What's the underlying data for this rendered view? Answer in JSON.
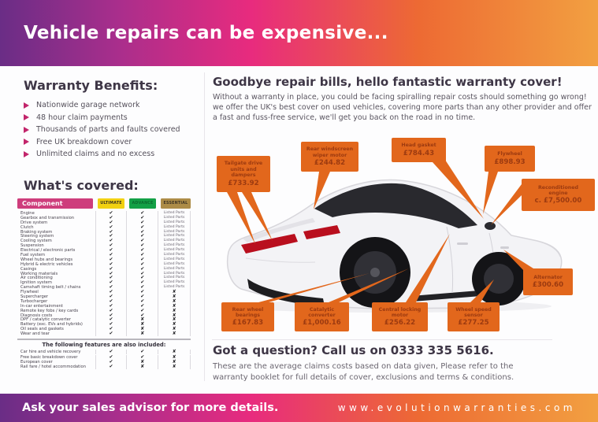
{
  "banner": {
    "title": "Vehicle repairs can be expensive...",
    "footer_left": "Ask your sales advisor for more details.",
    "website": "www.evolutionwarranties.com"
  },
  "benefits": {
    "heading": "Warranty Benefits:",
    "items": [
      "Nationwide garage network",
      "48 hour claim payments",
      "Thousands of parts and faults covered",
      "Free UK breakdown cover",
      "Unlimited claims and no excess"
    ]
  },
  "covered": {
    "heading": "What's covered:",
    "columns": [
      "Component",
      "ULTIMATE",
      "ADVANCE",
      "ESSENTIAL"
    ],
    "rows": [
      [
        "Engine",
        "✔",
        "✔",
        "Listed Parts"
      ],
      [
        "Gearbox and transmission",
        "✔",
        "✔",
        "Listed Parts"
      ],
      [
        "Drive system",
        "✔",
        "✔",
        "Listed Parts"
      ],
      [
        "Clutch",
        "✔",
        "✔",
        "Listed Parts"
      ],
      [
        "Braking system",
        "✔",
        "✔",
        "Listed Parts"
      ],
      [
        "Steering system",
        "✔",
        "✔",
        "Listed Parts"
      ],
      [
        "Cooling system",
        "✔",
        "✔",
        "Listed Parts"
      ],
      [
        "Suspension",
        "✔",
        "✔",
        "Listed Parts"
      ],
      [
        "Electrical / electronic parts",
        "✔",
        "✔",
        "Listed Parts"
      ],
      [
        "Fuel system",
        "✔",
        "✔",
        "Listed Parts"
      ],
      [
        "Wheel hubs and bearings",
        "✔",
        "✔",
        "Listed Parts"
      ],
      [
        "Hybrid & electric vehicles",
        "✔",
        "✔",
        "Listed Parts"
      ],
      [
        "Casings",
        "✔",
        "✔",
        "Listed Parts"
      ],
      [
        "Working materials",
        "✔",
        "✔",
        "Listed Parts"
      ],
      [
        "Air conditioning",
        "✔",
        "✔",
        "Listed Parts"
      ],
      [
        "Ignition system",
        "✔",
        "✔",
        "Listed Parts"
      ],
      [
        "Camshaft timing belt / chains",
        "✔",
        "✔",
        "Listed Parts"
      ],
      [
        "Flywheel",
        "✔",
        "✔",
        "✘"
      ],
      [
        "Supercharger",
        "✔",
        "✔",
        "✘"
      ],
      [
        "Turbocharger",
        "✔",
        "✔",
        "✘"
      ],
      [
        "In-car entertainment",
        "✔",
        "✔",
        "✘"
      ],
      [
        "Remote key fobs / key cards",
        "✔",
        "✔",
        "✘"
      ],
      [
        "Diagnosis costs",
        "✔",
        "✔",
        "✘"
      ],
      [
        "DPF / catalytic converter",
        "✔",
        "✘",
        "✘"
      ],
      [
        "Battery (exc. EVs and hybrids)",
        "✔",
        "✘",
        "✘"
      ],
      [
        "Oil seals and gaskets",
        "✔",
        "✘",
        "✘"
      ],
      [
        "Wear and tear",
        "✔",
        "✘",
        "✘"
      ]
    ],
    "features_heading": "The following features are also included:",
    "feature_rows": [
      [
        "Car hire and vehicle recovery",
        "✔",
        "✔",
        "✘"
      ],
      [
        "Free basic breakdown cover",
        "✔",
        "✔",
        "✘"
      ],
      [
        "European cover",
        "✔",
        "✘",
        "✘"
      ],
      [
        "Rail fare / hotel accommodation",
        "✔",
        "✘",
        "✘"
      ]
    ]
  },
  "intro": {
    "heading": "Goodbye repair bills, hello fantastic warranty cover!",
    "body": "Without a warranty in place, you could be facing spiralling repair costs should something go wrong! we offer the UK's best cover on used vehicles, covering more parts than any other provider and offer a fast and fuss-free service, we'll get you back on the road in no time."
  },
  "callouts": [
    {
      "name": "Tailgate drive units and dampers",
      "price": "£733.92"
    },
    {
      "name": "Rear windscreen wiper motor",
      "price": "£244.82"
    },
    {
      "name": "Head gasket",
      "price": "£784.43"
    },
    {
      "name": "Flywheel",
      "price": "£898.93"
    },
    {
      "name": "Reconditioned engine",
      "price": "c. £7,500.00"
    },
    {
      "name": "Alternator",
      "price": "£300.60"
    },
    {
      "name": "Rear wheel bearings",
      "price": "£167.83"
    },
    {
      "name": "Catalytic converter",
      "price": "£1,000.16"
    },
    {
      "name": "Central locking motor",
      "price": "£256.22"
    },
    {
      "name": "Wheel speed sensor",
      "price": "£277.25"
    }
  ],
  "contact": {
    "heading": "Got a question? Call us on 0333 335 5616.",
    "disclaimer": "These are the average claims costs based on data given, Please refer to the warranty booklet for full details of cover, exclusions and terms & conditions."
  },
  "colors": {
    "gradient_start": "#6a2d86",
    "gradient_mid": "#e82b7e",
    "gradient_end": "#f2a041",
    "accent_pink": "#c2256b",
    "callout_orange": "#e2671c",
    "ultimate_yellow": "#f2d112",
    "advance_green": "#13a046",
    "essential_gold": "#ad8c47"
  }
}
